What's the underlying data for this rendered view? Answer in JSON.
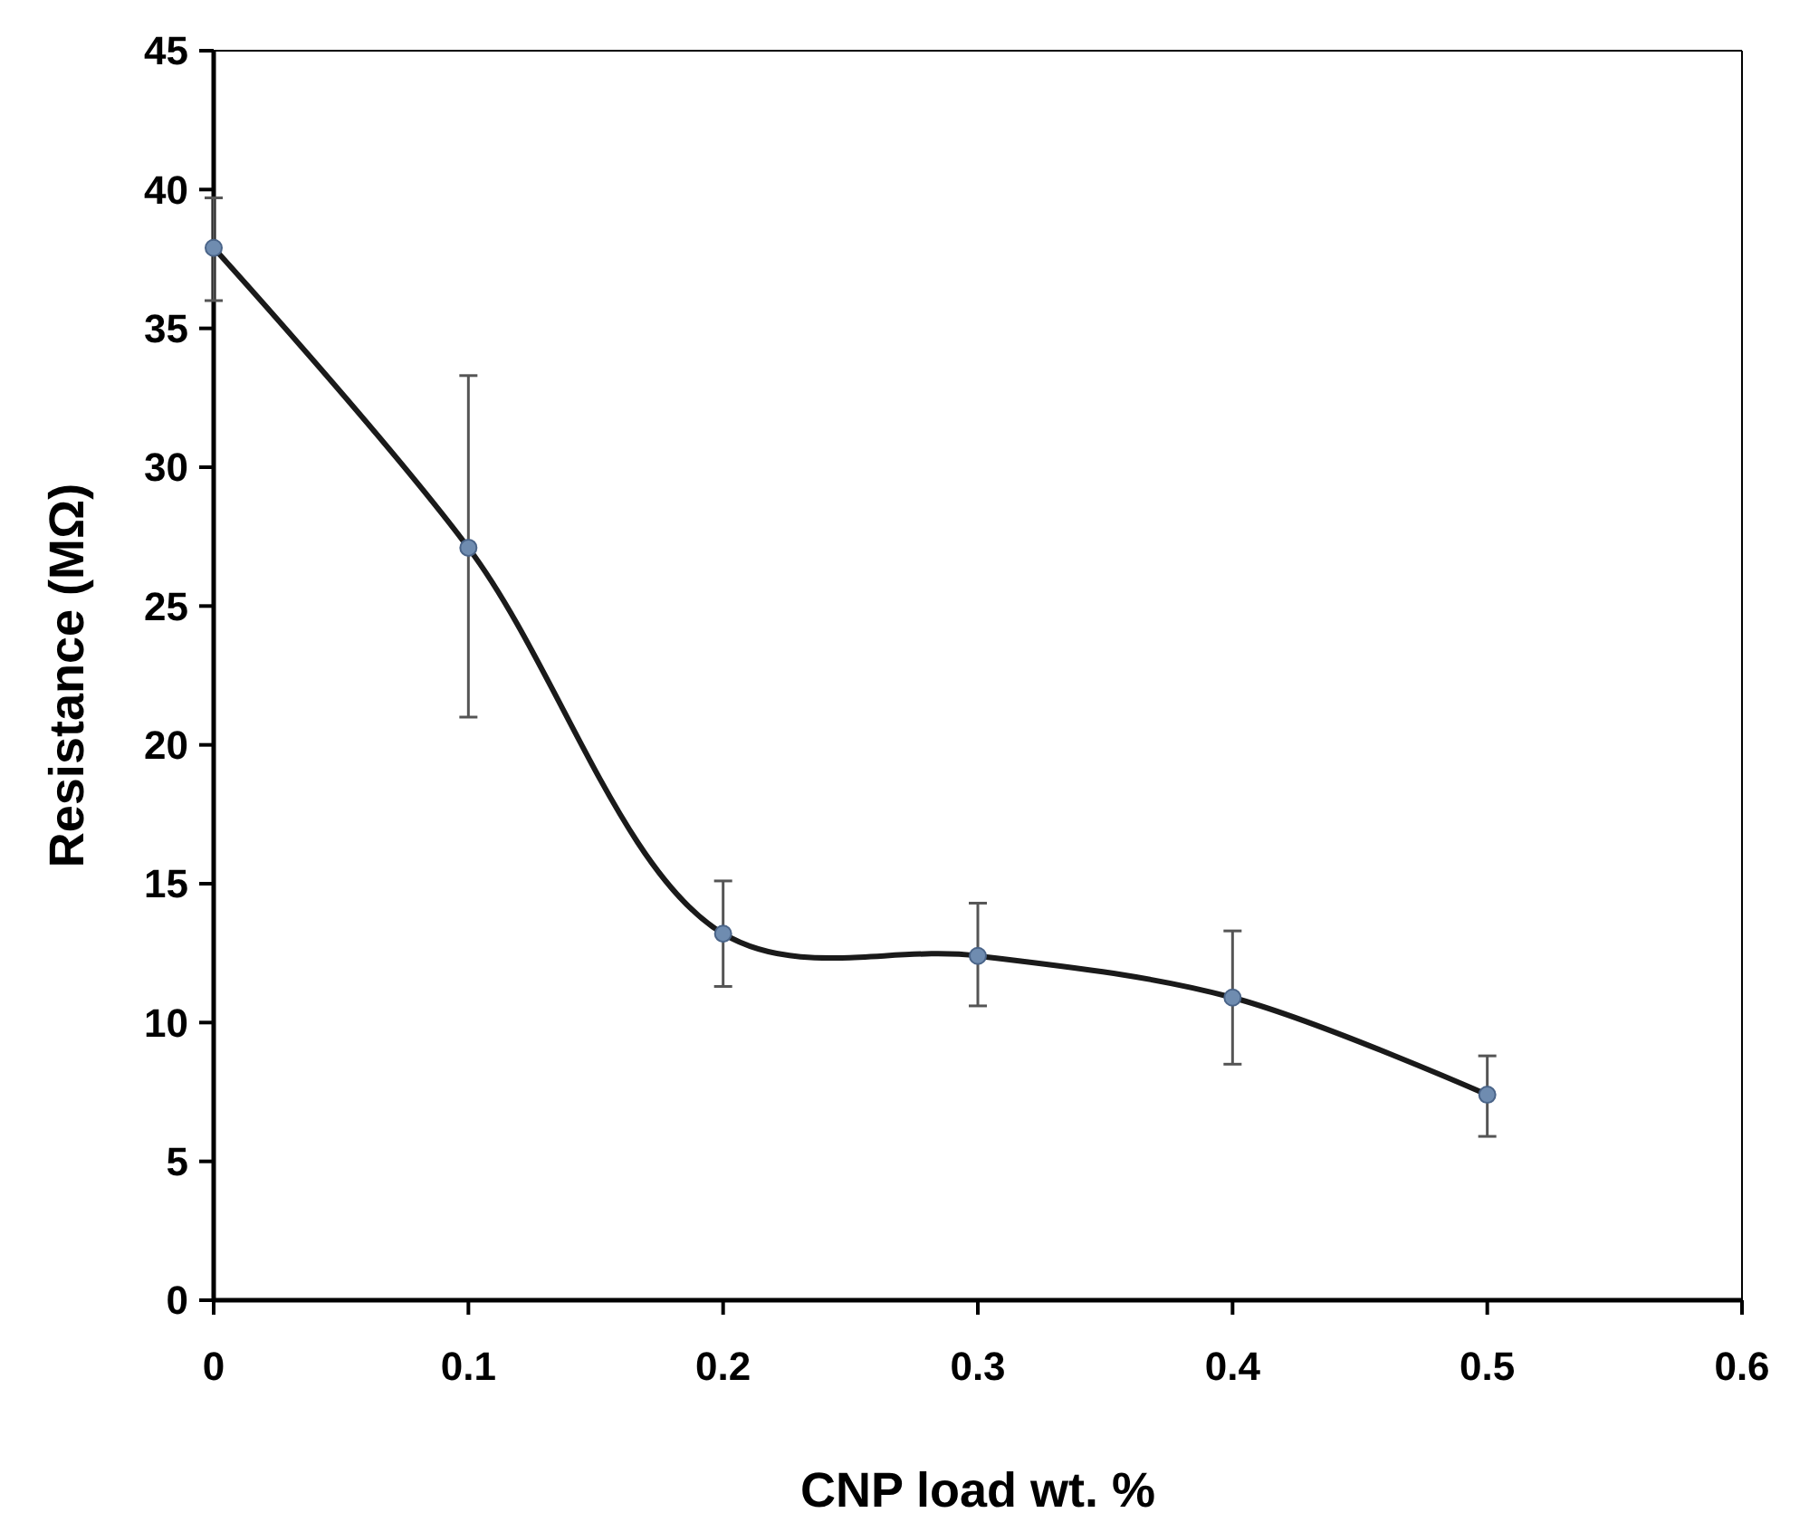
{
  "chart_data": {
    "type": "line",
    "xlabel": "CNP load wt. %",
    "ylabel": "Resistance (MΩ)",
    "xlim": [
      0,
      0.6
    ],
    "xticks": [
      0,
      0.1,
      0.2,
      0.3,
      0.4,
      0.5,
      0.6
    ],
    "ylim": [
      0,
      45
    ],
    "yticks": [
      0,
      5,
      10,
      15,
      20,
      25,
      30,
      35,
      40,
      45
    ],
    "x": [
      0,
      0.1,
      0.2,
      0.3,
      0.4,
      0.5
    ],
    "series": [
      {
        "color": "#1a1a1a",
        "values": [
          37.9,
          27.1,
          13.2,
          12.4,
          10.9,
          7.4
        ],
        "errors": [
          [
            36.0,
            39.7
          ],
          [
            21.0,
            33.3
          ],
          [
            11.3,
            15.1
          ],
          [
            10.6,
            14.3
          ],
          [
            8.5,
            13.3
          ],
          [
            5.9,
            8.8
          ]
        ]
      }
    ],
    "marker": "circle",
    "line_style": "solid",
    "grid": false
  }
}
